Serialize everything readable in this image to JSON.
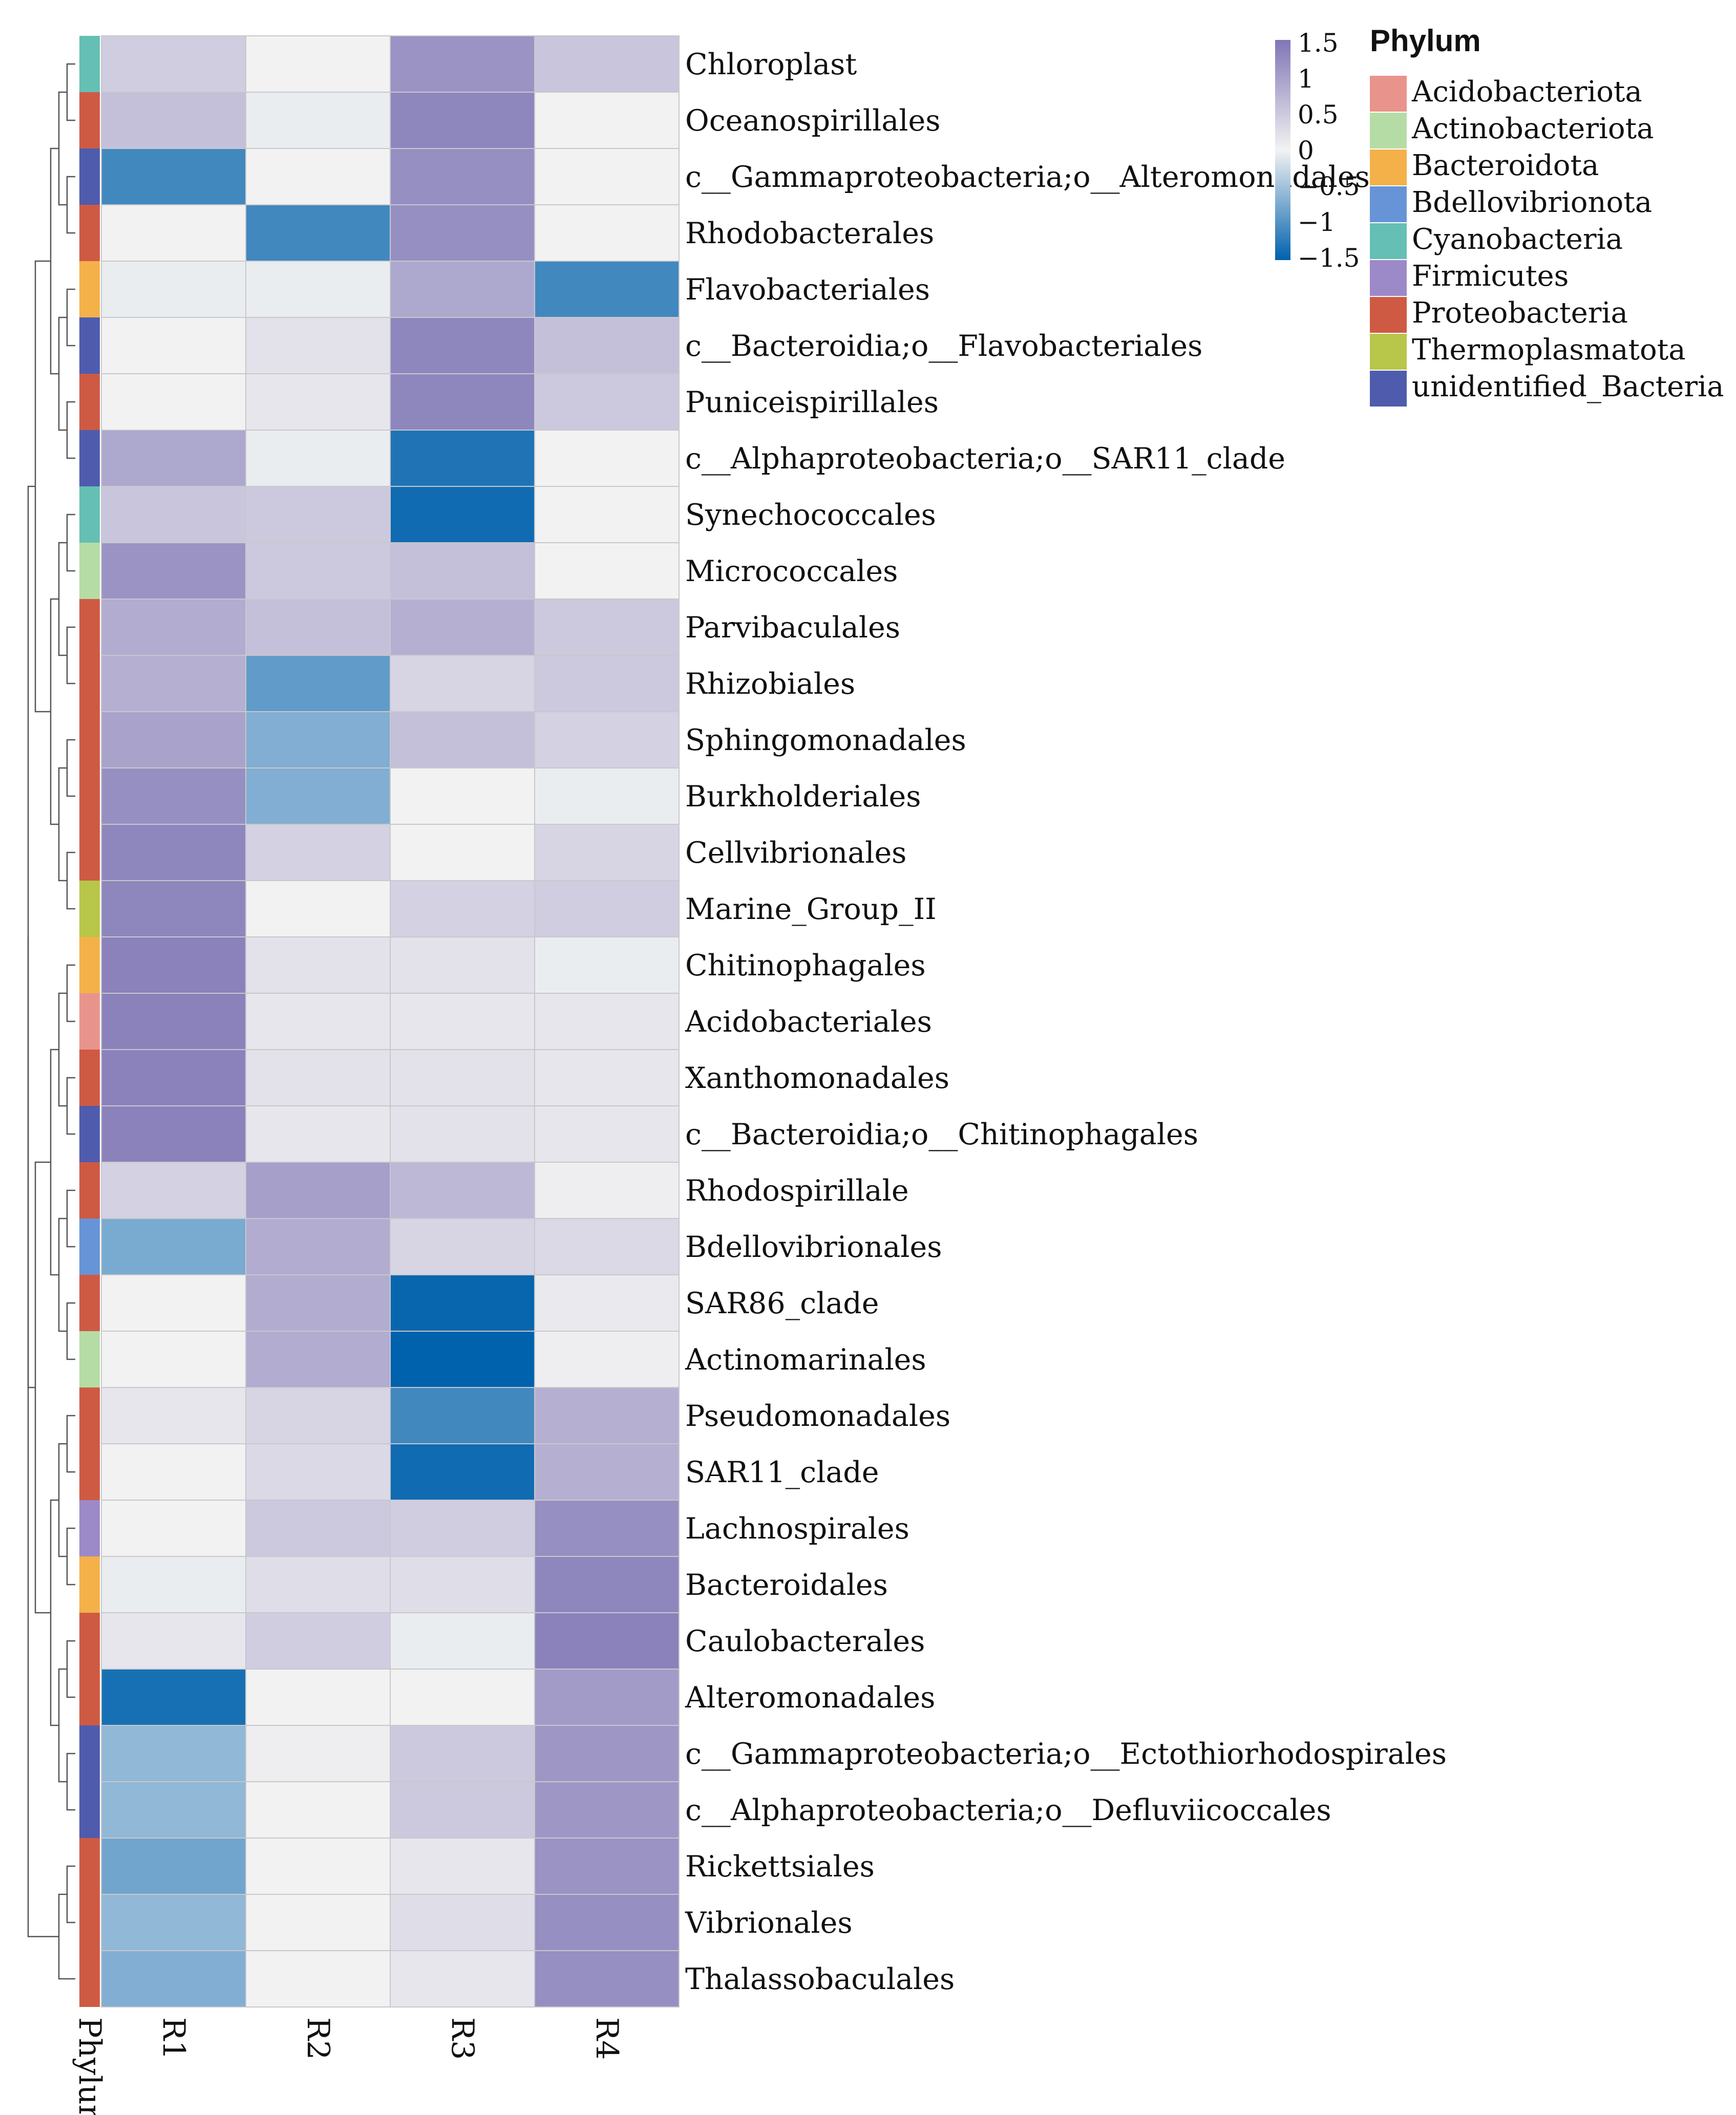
{
  "chart_data": {
    "type": "heatmap",
    "columns": [
      "R1",
      "R2",
      "R3",
      "R4"
    ],
    "annotation_column_label": "Phylum",
    "rows": [
      {
        "label": "Chloroplast",
        "phylum": "Cyanobacteria",
        "values": [
          0.45,
          0.0,
          1.15,
          0.55
        ]
      },
      {
        "label": "Oceanospirillales",
        "phylum": "Proteobacteria",
        "values": [
          0.6,
          -0.05,
          1.3,
          0.0
        ]
      },
      {
        "label": "c__Gammaproteobacteria;o__Alteromonadales",
        "phylum": "unidentified_Bacteria",
        "values": [
          -1.1,
          0.0,
          1.2,
          0.0
        ]
      },
      {
        "label": "Rhodobacterales",
        "phylum": "Proteobacteria",
        "values": [
          0.0,
          -1.1,
          1.2,
          0.0
        ]
      },
      {
        "label": "Flavobacteriales",
        "phylum": "Bacteroidota",
        "values": [
          -0.05,
          -0.05,
          0.9,
          -1.1
        ]
      },
      {
        "label": "c__Bacteroidia;o__Flavobacteriales",
        "phylum": "unidentified_Bacteria",
        "values": [
          0.0,
          0.2,
          1.3,
          0.6
        ]
      },
      {
        "label": "Puniceispirillales",
        "phylum": "Proteobacteria",
        "values": [
          0.0,
          0.15,
          1.3,
          0.5
        ]
      },
      {
        "label": "c__Alphaproteobacteria;o__SAR11_clade",
        "phylum": "unidentified_Bacteria",
        "values": [
          0.9,
          -0.05,
          -1.3,
          0.0
        ]
      },
      {
        "label": "Synechococcales",
        "phylum": "Cyanobacteria",
        "values": [
          0.55,
          0.5,
          -1.4,
          0.0
        ]
      },
      {
        "label": "Micrococcales",
        "phylum": "Actinobacteriota",
        "values": [
          1.15,
          0.5,
          0.6,
          0.0
        ]
      },
      {
        "label": "Parvibaculales",
        "phylum": "Proteobacteria",
        "values": [
          0.85,
          0.6,
          0.8,
          0.5
        ]
      },
      {
        "label": "Rhizobiales",
        "phylum": "Proteobacteria",
        "values": [
          0.8,
          -0.9,
          0.35,
          0.5
        ]
      },
      {
        "label": "Sphingomonadales",
        "phylum": "Proteobacteria",
        "values": [
          0.95,
          -0.7,
          0.6,
          0.4
        ]
      },
      {
        "label": "Burkholderiales",
        "phylum": "Proteobacteria",
        "values": [
          1.2,
          -0.7,
          0.0,
          -0.05
        ]
      },
      {
        "label": "Cellvibrionales",
        "phylum": "Proteobacteria",
        "values": [
          1.3,
          0.4,
          0.0,
          0.35
        ]
      },
      {
        "label": "Marine_Group_II",
        "phylum": "Thermoplasmatota",
        "values": [
          1.3,
          0.0,
          0.4,
          0.45
        ]
      },
      {
        "label": "Chitinophagales",
        "phylum": "Bacteroidota",
        "values": [
          1.35,
          0.2,
          0.2,
          -0.05
        ]
      },
      {
        "label": "Acidobacteriales",
        "phylum": "Acidobacteriota",
        "values": [
          1.35,
          0.15,
          0.15,
          0.15
        ]
      },
      {
        "label": "Xanthomonadales",
        "phylum": "Proteobacteria",
        "values": [
          1.35,
          0.2,
          0.2,
          0.15
        ]
      },
      {
        "label": "c__Bacteroidia;o__Chitinophagales",
        "phylum": "unidentified_Bacteria",
        "values": [
          1.35,
          0.15,
          0.2,
          0.15
        ]
      },
      {
        "label": "Rhodospirillale",
        "phylum": "Proteobacteria",
        "values": [
          0.4,
          1.0,
          0.7,
          0.05
        ]
      },
      {
        "label": "Bdellovibrionales",
        "phylum": "Bdellovibrionota",
        "values": [
          -0.75,
          0.85,
          0.35,
          0.3
        ]
      },
      {
        "label": "SAR86_clade",
        "phylum": "Proteobacteria",
        "values": [
          0.0,
          0.85,
          -1.45,
          0.1
        ]
      },
      {
        "label": "Actinomarinales",
        "phylum": "Actinobacteriota",
        "values": [
          0.0,
          0.85,
          -1.5,
          0.05
        ]
      },
      {
        "label": "Pseudomonadales",
        "phylum": "Proteobacteria",
        "values": [
          0.15,
          0.35,
          -1.1,
          0.8
        ]
      },
      {
        "label": "SAR11_clade",
        "phylum": "Proteobacteria",
        "values": [
          0.0,
          0.3,
          -1.4,
          0.8
        ]
      },
      {
        "label": "Lachnospirales",
        "phylum": "Firmicutes",
        "values": [
          0.0,
          0.5,
          0.45,
          1.2
        ]
      },
      {
        "label": "Bacteroidales",
        "phylum": "Bacteroidota",
        "values": [
          -0.05,
          0.25,
          0.25,
          1.3
        ]
      },
      {
        "label": "Caulobacterales",
        "phylum": "Proteobacteria",
        "values": [
          0.15,
          0.45,
          -0.05,
          1.35
        ]
      },
      {
        "label": "Alteromonadales",
        "phylum": "Proteobacteria",
        "values": [
          -1.35,
          0.0,
          0.0,
          1.05
        ]
      },
      {
        "label": "c__Gammaproteobacteria;o__Ectothiorhodospirales",
        "phylum": "unidentified_Bacteria",
        "values": [
          -0.6,
          0.05,
          0.5,
          1.1
        ]
      },
      {
        "label": "c__Alphaproteobacteria;o__Defluviicoccales",
        "phylum": "unidentified_Bacteria",
        "values": [
          -0.6,
          0.0,
          0.5,
          1.1
        ]
      },
      {
        "label": "Rickettsiales",
        "phylum": "Proteobacteria",
        "values": [
          -0.8,
          0.0,
          0.15,
          1.15
        ]
      },
      {
        "label": "Vibrionales",
        "phylum": "Proteobacteria",
        "values": [
          -0.6,
          0.0,
          0.25,
          1.2
        ]
      },
      {
        "label": "Thalassobaculales",
        "phylum": "Proteobacteria",
        "values": [
          -0.7,
          0.0,
          0.15,
          1.2
        ]
      }
    ],
    "color_scale": {
      "min": -1.5,
      "max": 1.5,
      "low_color": "#0061ad",
      "mid_color": "#f2f2f2",
      "high_color": "#7f76b6",
      "ticks": [
        "1.5",
        "1",
        "0.5",
        "0",
        "−0.5",
        "−1",
        "−1.5"
      ]
    },
    "legend": {
      "title": "Phylum",
      "items": [
        {
          "label": "Acidobacteriota",
          "color": "#e8948c"
        },
        {
          "label": "Actinobacteriota",
          "color": "#b6dca6"
        },
        {
          "label": "Bacteroidota",
          "color": "#f4b14a"
        },
        {
          "label": "Bdellovibrionota",
          "color": "#6794d6"
        },
        {
          "label": "Cyanobacteria",
          "color": "#65bfb4"
        },
        {
          "label": "Firmicutes",
          "color": "#9c89c7"
        },
        {
          "label": "Proteobacteria",
          "color": "#cf5a44"
        },
        {
          "label": "Thermoplasmatota",
          "color": "#b8c64a"
        },
        {
          "label": "unidentified_Bacteria",
          "color": "#4f5cae"
        }
      ]
    }
  }
}
